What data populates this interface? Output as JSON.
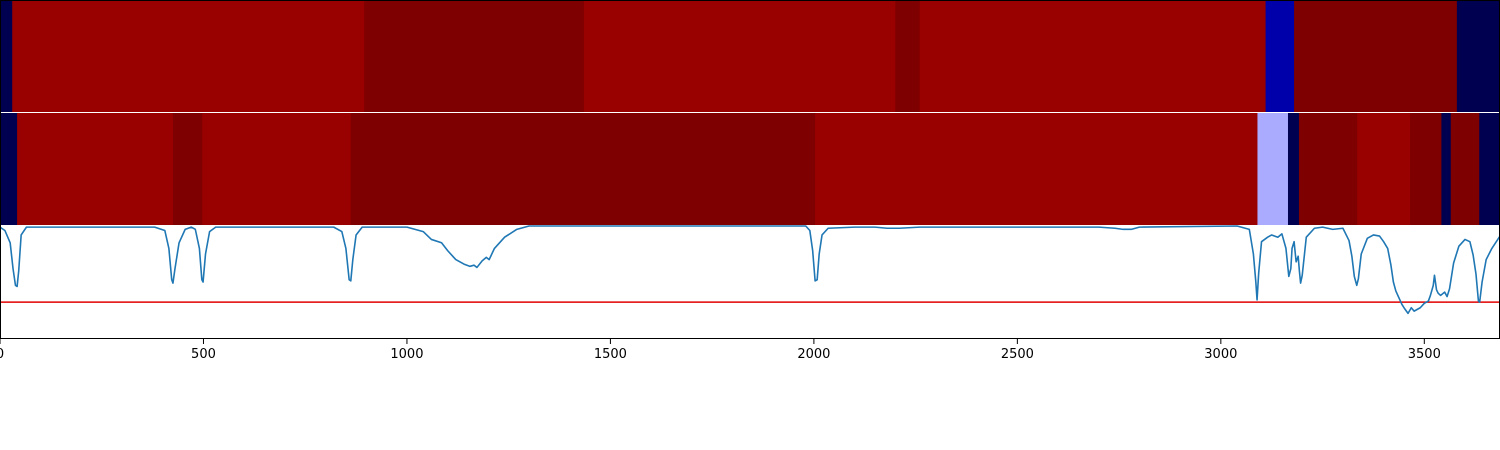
{
  "chart_data": {
    "type": "heatmap",
    "x_range": [
      0,
      3686
    ],
    "x_ticks": [
      "0",
      "500",
      "1000",
      "1500",
      "2000",
      "2500",
      "3000",
      "3500"
    ],
    "x_tick_values": [
      0,
      500,
      1000,
      1500,
      2000,
      2500,
      3000,
      3500
    ],
    "colors": {
      "red": "#990000",
      "dark_red": "#7f0000",
      "navy": "#000050",
      "blue": "#0000aa",
      "lavender": "#aaaaff",
      "line": "#1f77b4",
      "threshold": "#e00000"
    },
    "heat_rows": [
      {
        "segments": [
          {
            "x0": 0,
            "x1": 30,
            "color": "navy"
          },
          {
            "x0": 30,
            "x1": 895,
            "color": "red"
          },
          {
            "x0": 895,
            "x1": 1435,
            "color": "dark_red"
          },
          {
            "x0": 1435,
            "x1": 2200,
            "color": "red"
          },
          {
            "x0": 2200,
            "x1": 2260,
            "color": "dark_red"
          },
          {
            "x0": 2260,
            "x1": 3110,
            "color": "red"
          },
          {
            "x0": 3110,
            "x1": 3180,
            "color": "blue"
          },
          {
            "x0": 3180,
            "x1": 3580,
            "color": "dark_red"
          },
          {
            "x0": 3580,
            "x1": 3686,
            "color": "navy"
          }
        ]
      },
      {
        "segments": [
          {
            "x0": 0,
            "x1": 42,
            "color": "navy"
          },
          {
            "x0": 42,
            "x1": 425,
            "color": "red"
          },
          {
            "x0": 425,
            "x1": 497,
            "color": "dark_red"
          },
          {
            "x0": 497,
            "x1": 862,
            "color": "red"
          },
          {
            "x0": 862,
            "x1": 2003,
            "color": "dark_red"
          },
          {
            "x0": 2003,
            "x1": 3090,
            "color": "red"
          },
          {
            "x0": 3090,
            "x1": 3165,
            "color": "lavender"
          },
          {
            "x0": 3165,
            "x1": 3192,
            "color": "navy"
          },
          {
            "x0": 3192,
            "x1": 3335,
            "color": "dark_red"
          },
          {
            "x0": 3335,
            "x1": 3465,
            "color": "red"
          },
          {
            "x0": 3465,
            "x1": 3542,
            "color": "dark_red"
          },
          {
            "x0": 3542,
            "x1": 3565,
            "color": "navy"
          },
          {
            "x0": 3565,
            "x1": 3635,
            "color": "dark_red"
          },
          {
            "x0": 3635,
            "x1": 3686,
            "color": "navy"
          }
        ]
      }
    ],
    "line_series": {
      "ylim": [
        0,
        1
      ],
      "threshold": 0.32,
      "points": [
        [
          0,
          0.99
        ],
        [
          12,
          0.96
        ],
        [
          25,
          0.85
        ],
        [
          32,
          0.62
        ],
        [
          38,
          0.47
        ],
        [
          42,
          0.46
        ],
        [
          46,
          0.6
        ],
        [
          52,
          0.92
        ],
        [
          65,
          0.99
        ],
        [
          380,
          0.99
        ],
        [
          405,
          0.96
        ],
        [
          415,
          0.8
        ],
        [
          422,
          0.52
        ],
        [
          425,
          0.49
        ],
        [
          430,
          0.62
        ],
        [
          440,
          0.85
        ],
        [
          455,
          0.97
        ],
        [
          470,
          0.99
        ],
        [
          480,
          0.97
        ],
        [
          490,
          0.8
        ],
        [
          496,
          0.52
        ],
        [
          499,
          0.5
        ],
        [
          505,
          0.75
        ],
        [
          515,
          0.95
        ],
        [
          530,
          0.99
        ],
        [
          820,
          0.99
        ],
        [
          840,
          0.95
        ],
        [
          850,
          0.8
        ],
        [
          858,
          0.52
        ],
        [
          862,
          0.51
        ],
        [
          867,
          0.7
        ],
        [
          875,
          0.92
        ],
        [
          890,
          0.99
        ],
        [
          1000,
          0.99
        ],
        [
          1040,
          0.95
        ],
        [
          1060,
          0.88
        ],
        [
          1085,
          0.85
        ],
        [
          1100,
          0.78
        ],
        [
          1120,
          0.7
        ],
        [
          1140,
          0.66
        ],
        [
          1155,
          0.64
        ],
        [
          1165,
          0.65
        ],
        [
          1172,
          0.63
        ],
        [
          1185,
          0.69
        ],
        [
          1195,
          0.72
        ],
        [
          1202,
          0.7
        ],
        [
          1215,
          0.8
        ],
        [
          1240,
          0.9
        ],
        [
          1270,
          0.97
        ],
        [
          1300,
          1.0
        ],
        [
          1980,
          1.0
        ],
        [
          1990,
          0.96
        ],
        [
          1997,
          0.78
        ],
        [
          2003,
          0.51
        ],
        [
          2008,
          0.52
        ],
        [
          2013,
          0.75
        ],
        [
          2020,
          0.92
        ],
        [
          2035,
          0.98
        ],
        [
          2100,
          0.99
        ],
        [
          2150,
          0.99
        ],
        [
          2180,
          0.98
        ],
        [
          2210,
          0.98
        ],
        [
          2260,
          0.99
        ],
        [
          2700,
          0.99
        ],
        [
          2740,
          0.98
        ],
        [
          2760,
          0.97
        ],
        [
          2780,
          0.97
        ],
        [
          2800,
          0.99
        ],
        [
          3040,
          1.0
        ],
        [
          3070,
          0.97
        ],
        [
          3080,
          0.75
        ],
        [
          3086,
          0.5
        ],
        [
          3089,
          0.34
        ],
        [
          3093,
          0.58
        ],
        [
          3100,
          0.86
        ],
        [
          3115,
          0.9
        ],
        [
          3125,
          0.92
        ],
        [
          3140,
          0.9
        ],
        [
          3150,
          0.93
        ],
        [
          3160,
          0.8
        ],
        [
          3167,
          0.55
        ],
        [
          3172,
          0.62
        ],
        [
          3175,
          0.8
        ],
        [
          3180,
          0.86
        ],
        [
          3185,
          0.68
        ],
        [
          3190,
          0.73
        ],
        [
          3193,
          0.6
        ],
        [
          3196,
          0.49
        ],
        [
          3200,
          0.56
        ],
        [
          3210,
          0.9
        ],
        [
          3230,
          0.98
        ],
        [
          3250,
          0.99
        ],
        [
          3275,
          0.97
        ],
        [
          3300,
          0.98
        ],
        [
          3315,
          0.87
        ],
        [
          3322,
          0.73
        ],
        [
          3328,
          0.55
        ],
        [
          3334,
          0.47
        ],
        [
          3338,
          0.53
        ],
        [
          3345,
          0.75
        ],
        [
          3360,
          0.89
        ],
        [
          3375,
          0.92
        ],
        [
          3390,
          0.91
        ],
        [
          3400,
          0.86
        ],
        [
          3410,
          0.8
        ],
        [
          3418,
          0.65
        ],
        [
          3424,
          0.5
        ],
        [
          3430,
          0.42
        ],
        [
          3445,
          0.3
        ],
        [
          3452,
          0.26
        ],
        [
          3460,
          0.22
        ],
        [
          3468,
          0.27
        ],
        [
          3475,
          0.24
        ],
        [
          3490,
          0.27
        ],
        [
          3500,
          0.31
        ],
        [
          3510,
          0.33
        ],
        [
          3515,
          0.38
        ],
        [
          3522,
          0.47
        ],
        [
          3525,
          0.56
        ],
        [
          3530,
          0.43
        ],
        [
          3534,
          0.4
        ],
        [
          3540,
          0.38
        ],
        [
          3550,
          0.41
        ],
        [
          3556,
          0.37
        ],
        [
          3562,
          0.44
        ],
        [
          3572,
          0.67
        ],
        [
          3585,
          0.82
        ],
        [
          3600,
          0.88
        ],
        [
          3612,
          0.86
        ],
        [
          3620,
          0.74
        ],
        [
          3627,
          0.57
        ],
        [
          3633,
          0.33
        ],
        [
          3636,
          0.32
        ],
        [
          3642,
          0.5
        ],
        [
          3652,
          0.7
        ],
        [
          3666,
          0.8
        ],
        [
          3686,
          0.91
        ]
      ]
    }
  }
}
